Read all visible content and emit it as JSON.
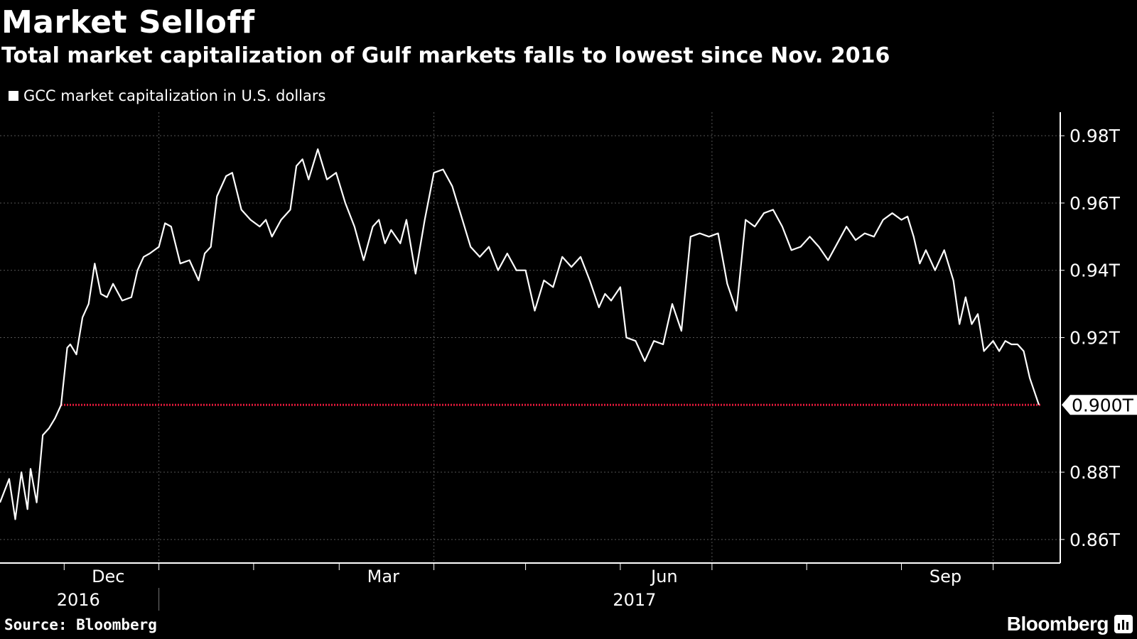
{
  "header": {
    "title": "Market Selloff",
    "subtitle": "Total market capitalization of Gulf markets falls to lowest since Nov. 2016"
  },
  "legend": {
    "label": "GCC market capitalization in U.S. dollars"
  },
  "footer": {
    "source": "Source: Bloomberg",
    "brand": "Bloomberg"
  },
  "colors": {
    "background": "#000000",
    "line": "#ffffff",
    "reference_line": "#e0193a",
    "grid": "#555555",
    "text": "#ffffff"
  },
  "chart_data": {
    "type": "line",
    "title": "Market Selloff",
    "subtitle": "Total market capitalization of Gulf markets falls to lowest since Nov. 2016",
    "xlabel": "",
    "ylabel": "",
    "unit": "T",
    "grid": true,
    "legend_placement": "top-left",
    "ylim": [
      0.853,
      0.987
    ],
    "y_ticks": [
      {
        "value": 0.86,
        "label": "0.86T"
      },
      {
        "value": 0.88,
        "label": "0.88T"
      },
      {
        "value": 0.92,
        "label": "0.92T"
      },
      {
        "value": 0.94,
        "label": "0.94T"
      },
      {
        "value": 0.96,
        "label": "0.96T"
      },
      {
        "value": 0.98,
        "label": "0.98T"
      }
    ],
    "last_value_label": "0.900T",
    "reference_line": {
      "value": 0.9,
      "start": "2016-11-30"
    },
    "x_range": [
      "2016-11-10",
      "2017-10-16"
    ],
    "x_ticks": [
      {
        "date": "2016-12-01",
        "label": "Dec",
        "year": "2016"
      },
      {
        "date": "2017-03-01",
        "label": "Mar",
        "year": ""
      },
      {
        "date": "2017-06-01",
        "label": "Jun",
        "year": "2017"
      },
      {
        "date": "2017-09-01",
        "label": "Sep",
        "year": ""
      }
    ],
    "series": [
      {
        "name": "GCC market capitalization in U.S. dollars",
        "x": [
          "2016-11-10",
          "2016-11-13",
          "2016-11-15",
          "2016-11-17",
          "2016-11-19",
          "2016-11-20",
          "2016-11-22",
          "2016-11-24",
          "2016-11-26",
          "2016-11-28",
          "2016-11-30",
          "2016-12-02",
          "2016-12-03",
          "2016-12-05",
          "2016-12-07",
          "2016-12-09",
          "2016-12-11",
          "2016-12-13",
          "2016-12-15",
          "2016-12-17",
          "2016-12-20",
          "2016-12-23",
          "2016-12-25",
          "2016-12-27",
          "2016-12-29",
          "2017-01-01",
          "2017-01-03",
          "2017-01-05",
          "2017-01-08",
          "2017-01-11",
          "2017-01-14",
          "2017-01-16",
          "2017-01-18",
          "2017-01-20",
          "2017-01-23",
          "2017-01-25",
          "2017-01-28",
          "2017-01-31",
          "2017-02-03",
          "2017-02-05",
          "2017-02-07",
          "2017-02-10",
          "2017-02-13",
          "2017-02-15",
          "2017-02-17",
          "2017-02-19",
          "2017-02-22",
          "2017-02-25",
          "2017-02-28",
          "2017-03-03",
          "2017-03-06",
          "2017-03-09",
          "2017-03-12",
          "2017-03-14",
          "2017-03-16",
          "2017-03-18",
          "2017-03-21",
          "2017-03-23",
          "2017-03-26",
          "2017-03-29",
          "2017-04-01",
          "2017-04-04",
          "2017-04-07",
          "2017-04-10",
          "2017-04-13",
          "2017-04-16",
          "2017-04-19",
          "2017-04-22",
          "2017-04-25",
          "2017-04-28",
          "2017-05-01",
          "2017-05-04",
          "2017-05-07",
          "2017-05-10",
          "2017-05-13",
          "2017-05-16",
          "2017-05-19",
          "2017-05-22",
          "2017-05-25",
          "2017-05-27",
          "2017-05-29",
          "2017-06-01",
          "2017-06-03",
          "2017-06-06",
          "2017-06-09",
          "2017-06-12",
          "2017-06-15",
          "2017-06-18",
          "2017-06-21",
          "2017-06-24",
          "2017-06-27",
          "2017-06-30",
          "2017-07-03",
          "2017-07-06",
          "2017-07-09",
          "2017-07-12",
          "2017-07-15",
          "2017-07-18",
          "2017-07-21",
          "2017-07-24",
          "2017-07-27",
          "2017-07-30",
          "2017-08-02",
          "2017-08-05",
          "2017-08-08",
          "2017-08-11",
          "2017-08-14",
          "2017-08-17",
          "2017-08-20",
          "2017-08-23",
          "2017-08-26",
          "2017-08-29",
          "2017-09-01",
          "2017-09-03",
          "2017-09-05",
          "2017-09-07",
          "2017-09-09",
          "2017-09-12",
          "2017-09-15",
          "2017-09-18",
          "2017-09-20",
          "2017-09-22",
          "2017-09-24",
          "2017-09-26",
          "2017-09-28",
          "2017-10-01",
          "2017-10-03",
          "2017-10-05",
          "2017-10-07",
          "2017-10-09",
          "2017-10-11",
          "2017-10-13",
          "2017-10-16"
        ],
        "values": [
          0.871,
          0.878,
          0.866,
          0.88,
          0.869,
          0.881,
          0.871,
          0.891,
          0.893,
          0.896,
          0.9,
          0.917,
          0.918,
          0.915,
          0.926,
          0.93,
          0.942,
          0.933,
          0.932,
          0.936,
          0.931,
          0.932,
          0.94,
          0.944,
          0.945,
          0.947,
          0.954,
          0.953,
          0.942,
          0.943,
          0.937,
          0.945,
          0.947,
          0.962,
          0.968,
          0.969,
          0.958,
          0.955,
          0.953,
          0.955,
          0.95,
          0.955,
          0.958,
          0.971,
          0.973,
          0.967,
          0.976,
          0.967,
          0.969,
          0.96,
          0.953,
          0.943,
          0.953,
          0.955,
          0.948,
          0.952,
          0.948,
          0.955,
          0.939,
          0.955,
          0.969,
          0.97,
          0.965,
          0.956,
          0.947,
          0.944,
          0.947,
          0.94,
          0.945,
          0.94,
          0.94,
          0.928,
          0.937,
          0.935,
          0.944,
          0.941,
          0.944,
          0.937,
          0.929,
          0.933,
          0.931,
          0.935,
          0.92,
          0.919,
          0.913,
          0.919,
          0.918,
          0.93,
          0.922,
          0.95,
          0.951,
          0.95,
          0.951,
          0.936,
          0.928,
          0.955,
          0.953,
          0.957,
          0.958,
          0.953,
          0.946,
          0.947,
          0.95,
          0.947,
          0.943,
          0.948,
          0.953,
          0.949,
          0.951,
          0.95,
          0.955,
          0.957,
          0.955,
          0.956,
          0.95,
          0.942,
          0.946,
          0.94,
          0.946,
          0.937,
          0.924,
          0.932,
          0.924,
          0.927,
          0.916,
          0.919,
          0.916,
          0.919,
          0.918,
          0.918,
          0.916,
          0.908,
          0.9
        ]
      }
    ]
  }
}
